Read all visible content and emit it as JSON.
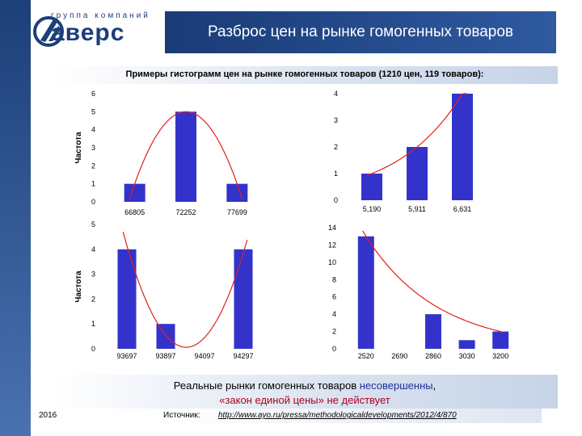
{
  "header": {
    "logo_small": "группа компаний",
    "logo_big": "аверс",
    "title": "Разброс цен на рынке гомогенных товаров"
  },
  "subtitle": "Примеры гистограмм  цен на рынке гомогенных товаров  (1210 цен, 119 товаров):",
  "conclusion": {
    "line1_a": "Реальные  рынки  гомогенных  товаров ",
    "line1_b": "несовершенны",
    "line1_c": ",",
    "line2": "«закон единой цены» не действует"
  },
  "footer": {
    "year": "2016",
    "source_label": "Источник:",
    "source_url": "http://www.ayo.ru/pressa/methodologicaldevelopments/2012/4/870"
  },
  "colors": {
    "bar": "#3333cc",
    "trend": "#e02020",
    "title_bg": "#1f4585",
    "accent": "#b0001a"
  },
  "chart_data": [
    {
      "type": "bar",
      "ylabel": "Частота",
      "categories": [
        "66805",
        "72252",
        "77699"
      ],
      "values": [
        1,
        5,
        1
      ],
      "yticks": [
        0,
        1,
        2,
        3,
        4,
        5,
        6
      ],
      "ylim": [
        0,
        6
      ],
      "trend": "parabola"
    },
    {
      "type": "bar",
      "ylabel": "",
      "categories": [
        "5,190",
        "5,911",
        "6,631"
      ],
      "values": [
        1,
        2,
        4
      ],
      "yticks": [
        0,
        1,
        2,
        3,
        4
      ],
      "ylim": [
        0,
        4
      ],
      "trend": "exponential"
    },
    {
      "type": "bar",
      "ylabel": "Частота",
      "categories": [
        "93697",
        "93897",
        "94097",
        "94297"
      ],
      "values": [
        4,
        1,
        0,
        4
      ],
      "yticks": [
        0,
        1,
        2,
        3,
        4,
        5
      ],
      "ylim": [
        0,
        5
      ],
      "trend": "parabola"
    },
    {
      "type": "bar",
      "ylabel": "",
      "categories": [
        "2520",
        "2690",
        "2860",
        "3030",
        "3200"
      ],
      "values": [
        13,
        0,
        4,
        1,
        2
      ],
      "yticks": [
        0,
        2,
        4,
        6,
        8,
        10,
        12,
        14
      ],
      "ylim": [
        0,
        14
      ],
      "trend": "exponential"
    }
  ]
}
